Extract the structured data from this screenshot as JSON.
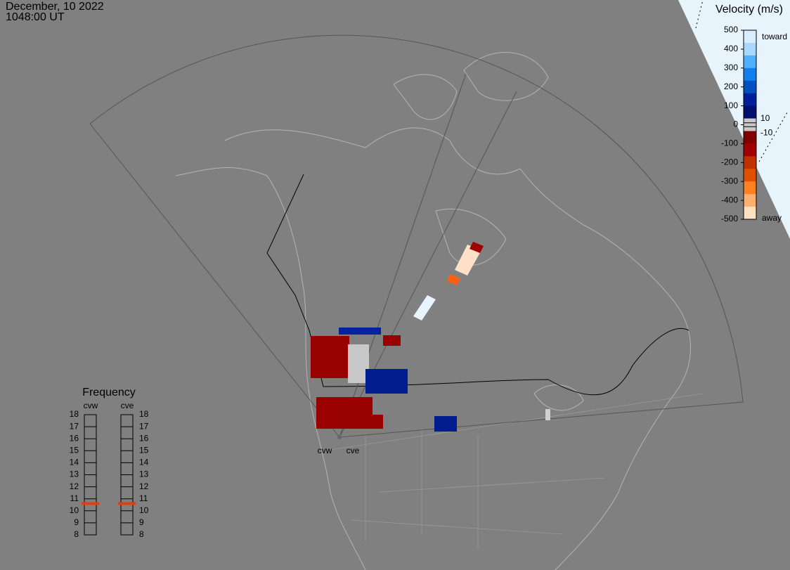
{
  "header": {
    "date": "December, 10 2022",
    "time": "1048:00 UT"
  },
  "velocity_scale": {
    "title": "Velocity (m/s)",
    "range": [
      -500,
      500
    ],
    "ticks": [
      500,
      400,
      300,
      200,
      100,
      0,
      -100,
      -200,
      -300,
      -400,
      -500
    ],
    "inner_ticks": [
      10,
      -10
    ],
    "toward": "toward",
    "away": "away"
  },
  "frequency": {
    "title": "Frequency",
    "range": [
      8,
      18
    ],
    "ticks": [
      18,
      17,
      16,
      15,
      14,
      13,
      12,
      11,
      10,
      9,
      8
    ],
    "radars": [
      {
        "name": "cvw",
        "value": 10.6
      },
      {
        "name": "cve",
        "value": 10.6
      }
    ]
  },
  "map": {
    "radar_labels": [
      "cvw",
      "cve"
    ]
  }
}
